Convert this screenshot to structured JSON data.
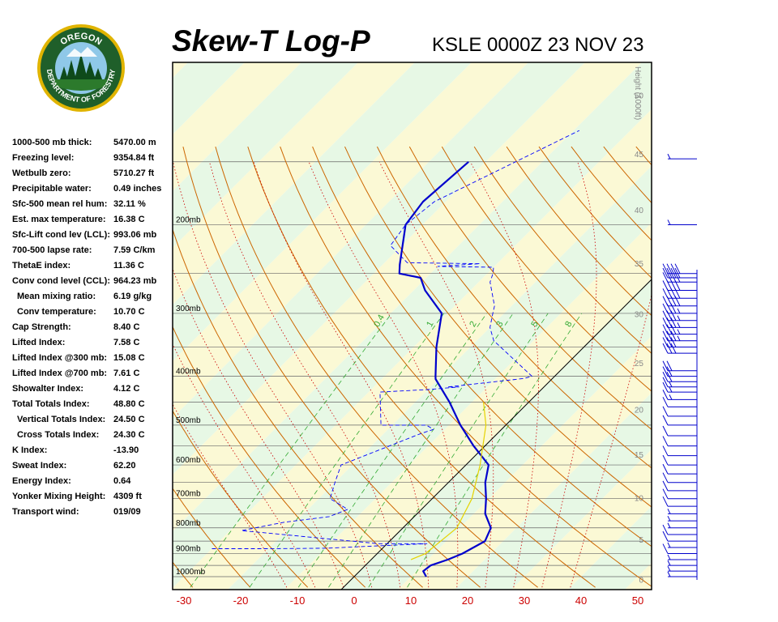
{
  "header": {
    "title": "Skew-T Log-P",
    "station_line": "KSLE 0000Z 23 NOV 23"
  },
  "logo": {
    "top_text": "OREGON",
    "ring_text": "DEPARTMENT OF FORESTRY",
    "colors": {
      "ring": "#1f5f2a",
      "gold": "#e0b400",
      "sky": "#8fc8e8"
    }
  },
  "indices": [
    {
      "label": "1000-500 mb thick:",
      "value": "5470.00 m"
    },
    {
      "label": "Freezing level:",
      "value": "9354.84 ft"
    },
    {
      "label": "Wetbulb zero:",
      "value": "5710.27 ft"
    },
    {
      "label": "Precipitable water:",
      "value": "0.49 inches"
    },
    {
      "label": "Sfc-500 mean rel hum:",
      "value": "32.11 %"
    },
    {
      "label": "Est. max temperature:",
      "value": "16.38 C"
    },
    {
      "label": "Sfc-Lift cond lev (LCL):",
      "value": "993.06 mb"
    },
    {
      "label": "700-500 lapse rate:",
      "value": "7.59 C/km"
    },
    {
      "label": "ThetaE index:",
      "value": "11.36 C"
    },
    {
      "label": "Conv cond level (CCL):",
      "value": "964.23 mb"
    },
    {
      "label": "Mean mixing ratio:",
      "value": "6.19 g/kg",
      "indent": true
    },
    {
      "label": "Conv temperature:",
      "value": "10.70 C",
      "indent": true
    },
    {
      "label": "Cap Strength:",
      "value": "8.40 C"
    },
    {
      "label": "Lifted Index:",
      "value": "7.58 C"
    },
    {
      "label": "Lifted Index @300 mb:",
      "value": "15.08 C"
    },
    {
      "label": "Lifted Index @700 mb:",
      "value": "7.61 C"
    },
    {
      "label": "Showalter Index:",
      "value": "4.12 C"
    },
    {
      "label": "Total Totals Index:",
      "value": "48.80 C"
    },
    {
      "label": "Vertical Totals Index:",
      "value": "24.50 C",
      "indent": true
    },
    {
      "label": "Cross Totals Index:",
      "value": "24.30 C",
      "indent": true
    },
    {
      "label": "K Index:",
      "value": "-13.90"
    },
    {
      "label": "Sweat Index:",
      "value": "62.20"
    },
    {
      "label": "Energy Index:",
      "value": "0.64"
    },
    {
      "label": "Yonker Mixing Height:",
      "value": "4309 ft"
    },
    {
      "label": "Transport wind:",
      "value": "019/09"
    }
  ],
  "chart_data": {
    "type": "line",
    "title": "Skew-T Log-P",
    "xlabel": "",
    "ylabel": "",
    "x_ticks": [
      "-30",
      "-20",
      "-10",
      "0",
      "10",
      "20",
      "30",
      "40",
      "50"
    ],
    "xlim": [
      -32,
      52
    ],
    "pressure_labels": [
      "200mb",
      "300mb",
      "400mb",
      "500mb",
      "600mb",
      "700mb",
      "800mb",
      "900mb",
      "1000mb"
    ],
    "pressure_levels": [
      200,
      300,
      400,
      500,
      600,
      700,
      800,
      900,
      1000
    ],
    "height_axis_label": "Height (1000ft)",
    "height_ticks": [
      "0",
      "5",
      "10",
      "15",
      "20",
      "25",
      "30",
      "35",
      "40",
      "45",
      "50"
    ],
    "mixing_ratio_labels": [
      "0.4",
      "1",
      "2",
      "3",
      "5",
      "8"
    ],
    "colors": {
      "temperature": "#0000cc",
      "dewpoint": "#0000ff",
      "parcel": "#e6d300",
      "dry_adiabat": "#cc6600",
      "moist_adiabat": "#cc0000",
      "mixing_ratio": "#33aa33",
      "isotherm_0": "#000000",
      "band_green": "#e7f8e5",
      "band_yellow": "#fbf9d5",
      "axis_labels": "#cc0000",
      "wind_barbs": "#0000cc"
    },
    "series": [
      {
        "role": "temperature",
        "points": [
          [
            12.7,
            1000
          ],
          [
            11.2,
            975
          ],
          [
            11.5,
            950
          ],
          [
            13.5,
            925
          ],
          [
            15.0,
            900
          ],
          [
            16.8,
            850
          ],
          [
            15.5,
            800
          ],
          [
            12.0,
            750
          ],
          [
            9.5,
            700
          ],
          [
            6.5,
            650
          ],
          [
            4.0,
            600
          ],
          [
            -2.0,
            550
          ],
          [
            -8.0,
            500
          ],
          [
            -14.0,
            450
          ],
          [
            -20.5,
            405
          ],
          [
            -21.0,
            400
          ],
          [
            -26.0,
            350
          ],
          [
            -31.0,
            300
          ],
          [
            -38.0,
            270
          ],
          [
            -41.0,
            255
          ],
          [
            -45.5,
            250
          ],
          [
            -47.0,
            240
          ],
          [
            -53.0,
            200
          ],
          [
            -54.0,
            180
          ],
          [
            -53.0,
            150
          ]
        ]
      },
      {
        "role": "dewpoint",
        "points": [
          [
            -30,
            880
          ],
          [
            -20,
            880
          ],
          [
            -10,
            878
          ],
          [
            7.0,
            860
          ],
          [
            -1.5,
            860
          ],
          [
            -28,
            810
          ],
          [
            -22,
            780
          ],
          [
            -15,
            760
          ],
          [
            -13.0,
            735
          ],
          [
            -18.0,
            700
          ],
          [
            -20.0,
            650
          ],
          [
            -22.0,
            600
          ],
          [
            -13.5,
            520
          ],
          [
            -12.0,
            510
          ],
          [
            -14.0,
            500
          ],
          [
            -22.0,
            500
          ],
          [
            -28,
            430
          ],
          [
            -20,
            425
          ],
          [
            -15,
            420
          ],
          [
            -17,
            420
          ],
          [
            -5,
            404
          ],
          [
            -4,
            400
          ],
          [
            -17,
            340
          ],
          [
            -20,
            320
          ],
          [
            -22,
            300
          ],
          [
            -23,
            290
          ],
          [
            -28,
            260
          ],
          [
            -29,
            250
          ],
          [
            -30,
            243
          ],
          [
            -40,
            242
          ],
          [
            -33,
            239
          ],
          [
            -46,
            238
          ],
          [
            -52,
            220
          ],
          [
            -53,
            200
          ],
          [
            -52,
            180
          ],
          [
            -39,
            130
          ]
        ]
      },
      {
        "role": "parcel",
        "points": [
          [
            7.0,
            925
          ],
          [
            8.5,
            900
          ],
          [
            9.5,
            800
          ],
          [
            7.0,
            700
          ],
          [
            2.5,
            600
          ],
          [
            -3.5,
            500
          ],
          [
            -8.0,
            450
          ]
        ]
      }
    ],
    "wind_speeds_kt": [
      [
        5,
        1000
      ],
      [
        7,
        975
      ],
      [
        9,
        950
      ],
      [
        9,
        925
      ],
      [
        10,
        900
      ],
      [
        9,
        875
      ],
      [
        10,
        850
      ],
      [
        10,
        825
      ],
      [
        8,
        800
      ],
      [
        9,
        775
      ],
      [
        9,
        750
      ],
      [
        10,
        725
      ],
      [
        10,
        700
      ],
      [
        10,
        675
      ],
      [
        10,
        650
      ],
      [
        10,
        625
      ],
      [
        10,
        600
      ],
      [
        10,
        575
      ],
      [
        10,
        550
      ],
      [
        12,
        525
      ],
      [
        12,
        500
      ],
      [
        12,
        480
      ],
      [
        12,
        460
      ],
      [
        15,
        445
      ],
      [
        15,
        430
      ],
      [
        15,
        420
      ],
      [
        20,
        410
      ],
      [
        20,
        400
      ],
      [
        20,
        390
      ],
      [
        30,
        360
      ],
      [
        30,
        350
      ],
      [
        35,
        340
      ],
      [
        35,
        330
      ],
      [
        35,
        320
      ],
      [
        35,
        310
      ],
      [
        35,
        300
      ],
      [
        40,
        290
      ],
      [
        40,
        280
      ],
      [
        40,
        270
      ],
      [
        40,
        260
      ],
      [
        40,
        255
      ],
      [
        40,
        250
      ],
      [
        5,
        200
      ],
      [
        5,
        148
      ]
    ]
  }
}
